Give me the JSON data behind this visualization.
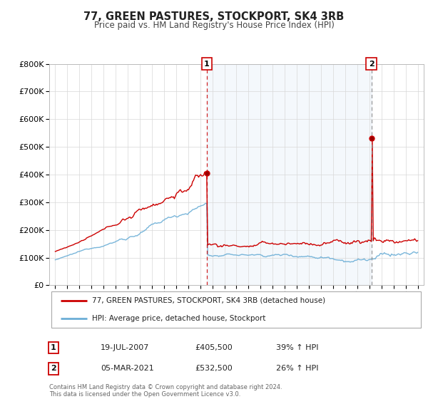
{
  "title": "77, GREEN PASTURES, STOCKPORT, SK4 3RB",
  "subtitle": "Price paid vs. HM Land Registry's House Price Index (HPI)",
  "legend_line1": "77, GREEN PASTURES, STOCKPORT, SK4 3RB (detached house)",
  "legend_line2": "HPI: Average price, detached house, Stockport",
  "annotation1_date": "19-JUL-2007",
  "annotation1_price": 405500,
  "annotation1_hpi": "39% ↑ HPI",
  "annotation2_date": "05-MAR-2021",
  "annotation2_price": 532500,
  "annotation2_hpi": "26% ↑ HPI",
  "vline1_year": 2007.54,
  "vline2_year": 2021.17,
  "price_color": "#cc0000",
  "hpi_color": "#6baed6",
  "hpi_fill_color": "#ddeeff",
  "background_color": "#ffffff",
  "grid_color": "#d8d8d8",
  "ylim": [
    0,
    800000
  ],
  "xlim_start": 1994.5,
  "xlim_end": 2025.5,
  "footer_line1": "Contains HM Land Registry data © Crown copyright and database right 2024.",
  "footer_line2": "This data is licensed under the Open Government Licence v3.0."
}
